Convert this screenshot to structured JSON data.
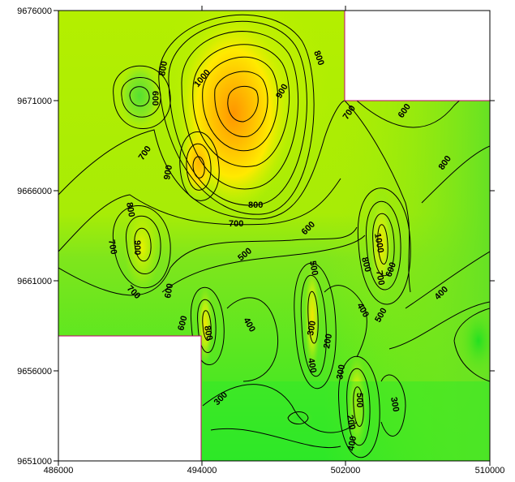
{
  "map": {
    "type": "contour",
    "x_axis": {
      "ticks": [
        "486000",
        "494000",
        "502000",
        "510000"
      ],
      "range": [
        486000,
        510000
      ]
    },
    "y_axis": {
      "ticks": [
        "9676000",
        "9671000",
        "9666000",
        "9661000",
        "9656000",
        "9651000"
      ],
      "range": [
        9651000,
        9676000
      ]
    },
    "colors": {
      "low": "#1fe81f",
      "mid_low": "#7fe81a",
      "mid": "#b8f000",
      "mid_high": "#ffea00",
      "high": "#ffb000",
      "max": "#ff9500",
      "blank": "#ffffff",
      "border": "#000000",
      "blank_edge": "#c00070"
    },
    "contour_labels": [
      "600",
      "800",
      "1000",
      "900",
      "800",
      "700",
      "600",
      "700",
      "900",
      "800",
      "700",
      "800",
      "600",
      "900",
      "700",
      "800",
      "700",
      "500",
      "500",
      "1000",
      "800",
      "600",
      "600",
      "700",
      "400",
      "600",
      "800",
      "400",
      "400",
      "500",
      "200",
      "300",
      "400",
      "500",
      "300",
      "200",
      "300",
      "400",
      "300"
    ]
  }
}
